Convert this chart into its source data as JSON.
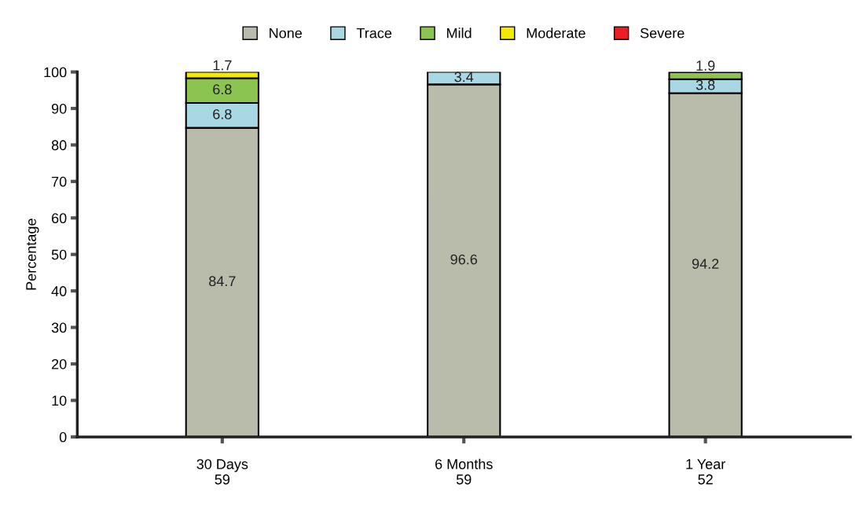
{
  "chart_data": {
    "type": "bar",
    "stacked": true,
    "ylabel": "Percentage",
    "categories": [
      "30 Days\n59",
      "6 Months\n59",
      "1 Year\n52"
    ],
    "series": [
      {
        "name": "None",
        "color": "#b9bcaa",
        "values": [
          84.7,
          96.6,
          94.2
        ],
        "value_labels": [
          "84.7",
          "96.6",
          "94.2"
        ]
      },
      {
        "name": "Trace",
        "color": "#a8d8e4",
        "values": [
          6.8,
          3.4,
          3.8
        ],
        "value_labels": [
          "6.8",
          "3.4",
          "3.8"
        ]
      },
      {
        "name": "Mild",
        "color": "#8cc451",
        "values": [
          6.8,
          0,
          1.9
        ],
        "value_labels": [
          "6.8",
          null,
          "1.9"
        ]
      },
      {
        "name": "Moderate",
        "color": "#f2ea00",
        "values": [
          1.7,
          0,
          0
        ],
        "value_labels": [
          "1.7",
          null,
          null
        ]
      },
      {
        "name": "Severe",
        "color": "#ee1c25",
        "values": [
          0,
          0,
          0
        ],
        "value_labels": [
          null,
          null,
          null
        ]
      }
    ],
    "ylim": [
      0,
      100
    ],
    "yticks": [
      0,
      10,
      20,
      30,
      40,
      50,
      60,
      70,
      80,
      90,
      100
    ],
    "grid": false,
    "legend": "top"
  }
}
